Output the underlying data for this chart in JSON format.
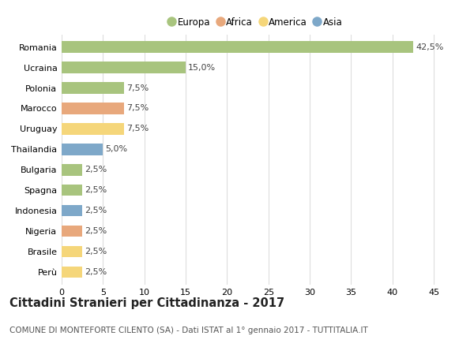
{
  "countries": [
    "Romania",
    "Ucraina",
    "Polonia",
    "Marocco",
    "Uruguay",
    "Thailandia",
    "Bulgaria",
    "Spagna",
    "Indonesia",
    "Nigeria",
    "Brasile",
    "Perù"
  ],
  "values": [
    42.5,
    15.0,
    7.5,
    7.5,
    7.5,
    5.0,
    2.5,
    2.5,
    2.5,
    2.5,
    2.5,
    2.5
  ],
  "labels": [
    "42,5%",
    "15,0%",
    "7,5%",
    "7,5%",
    "7,5%",
    "5,0%",
    "2,5%",
    "2,5%",
    "2,5%",
    "2,5%",
    "2,5%",
    "2,5%"
  ],
  "continents": [
    "Europa",
    "Europa",
    "Europa",
    "Africa",
    "America",
    "Asia",
    "Europa",
    "Europa",
    "Asia",
    "Africa",
    "America",
    "America"
  ],
  "colors": {
    "Europa": "#a8c47e",
    "Africa": "#e8a87c",
    "America": "#f5d67a",
    "Asia": "#7ea8c9"
  },
  "legend_order": [
    "Europa",
    "Africa",
    "America",
    "Asia"
  ],
  "xlim": [
    0,
    47
  ],
  "xticks": [
    0,
    5,
    10,
    15,
    20,
    25,
    30,
    35,
    40,
    45
  ],
  "title": "Cittadini Stranieri per Cittadinanza - 2017",
  "subtitle": "COMUNE DI MONTEFORTE CILENTO (SA) - Dati ISTAT al 1° gennaio 2017 - TUTTITALIA.IT",
  "background_color": "#ffffff",
  "grid_color": "#dddddd",
  "bar_height": 0.55,
  "title_fontsize": 10.5,
  "subtitle_fontsize": 7.5,
  "tick_fontsize": 8,
  "label_fontsize": 8,
  "legend_fontsize": 8.5
}
